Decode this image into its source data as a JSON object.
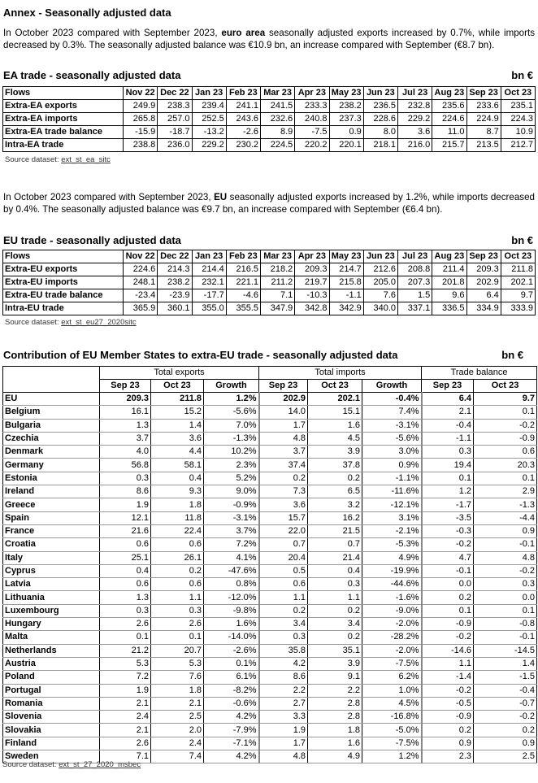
{
  "title": "Annex - Seasonally adjusted data",
  "para1": {
    "a": "In October 2023 compared with September 2023, ",
    "b": "euro area",
    "c": " seasonally adjusted exports increased by 0.7%, while imports decreased by 0.3%. The seasonally adjusted balance was €10.9 bn, an increase compared with September (€8.7 bn)."
  },
  "ea": {
    "title": "EA trade - seasonally adjusted data",
    "unit": "bn €",
    "headers": [
      "Flows",
      "Nov 22",
      "Dec 22",
      "Jan 23",
      "Feb 23",
      "Mar 23",
      "Apr 23",
      "May 23",
      "Jun 23",
      "Jul 23",
      "Aug 23",
      "Sep 23",
      "Oct 23"
    ],
    "rows": [
      [
        "Extra-EA exports",
        "249.9",
        "238.3",
        "239.4",
        "241.1",
        "241.5",
        "233.3",
        "238.2",
        "236.5",
        "232.8",
        "235.6",
        "233.6",
        "235.1"
      ],
      [
        "Extra-EA imports",
        "265.8",
        "257.0",
        "252.5",
        "243.6",
        "232.6",
        "240.8",
        "237.3",
        "228.6",
        "229.2",
        "224.6",
        "224.9",
        "224.3"
      ],
      [
        "Extra-EA trade balance",
        "-15.9",
        "-18.7",
        "-13.2",
        "-2.6",
        "8.9",
        "-7.5",
        "0.9",
        "8.0",
        "3.6",
        "11.0",
        "8.7",
        "10.9"
      ],
      [
        "Intra-EA trade",
        "238.8",
        "236.0",
        "229.2",
        "230.2",
        "224.5",
        "220.2",
        "220.1",
        "218.1",
        "216.0",
        "215.7",
        "213.5",
        "212.7"
      ]
    ],
    "source_label": "Source dataset: ",
    "source_link": "ext_st_ea_sitc"
  },
  "para2": {
    "a": "In October 2023 compared with September 2023, ",
    "b": "EU",
    "c": " seasonally adjusted exports increased by 1.2%, while imports decreased by 0.4%. The seasonally adjusted balance was €9.7 bn, an increase compared with September (€6.4 bn)."
  },
  "eu": {
    "title": "EU trade - seasonally adjusted data",
    "unit": "bn €",
    "headers": [
      "Flows",
      "Nov 22",
      "Dec 22",
      "Jan 23",
      "Feb 23",
      "Mar 23",
      "Apr 23",
      "May 23",
      "Jun 23",
      "Jul 23",
      "Aug 23",
      "Sep 23",
      "Oct 23"
    ],
    "rows": [
      [
        "Extra-EU exports",
        "224.6",
        "214.3",
        "214.4",
        "216.5",
        "218.2",
        "209.3",
        "214.7",
        "212.6",
        "208.8",
        "211.4",
        "209.3",
        "211.8"
      ],
      [
        "Extra-EU imports",
        "248.1",
        "238.2",
        "232.1",
        "221.1",
        "211.2",
        "219.7",
        "215.8",
        "205.0",
        "207.3",
        "201.8",
        "202.9",
        "202.1"
      ],
      [
        "Extra-EU trade balance",
        "-23.4",
        "-23.9",
        "-17.7",
        "-4.6",
        "7.1",
        "-10.3",
        "-1.1",
        "7.6",
        "1.5",
        "9.6",
        "6.4",
        "9.7"
      ],
      [
        "Intra-EU trade",
        "365.9",
        "360.1",
        "355.0",
        "355.5",
        "347.9",
        "342.8",
        "342.9",
        "340.0",
        "337.1",
        "336.5",
        "334.9",
        "333.9"
      ]
    ],
    "source_label": "Source dataset: ",
    "source_link": "ext_st_eu27_2020sitc"
  },
  "contrib": {
    "title": "Contribution of EU Member States to extra-EU trade - seasonally adjusted data",
    "unit": "bn €",
    "groups": [
      "Total exports",
      "Total imports",
      "Trade balance"
    ],
    "subheaders": [
      "Sep 23",
      "Oct 23",
      "Growth",
      "Sep 23",
      "Oct 23",
      "Growth",
      "Sep 23",
      "Oct 23"
    ],
    "rows": [
      [
        "EU",
        "209.3",
        "211.8",
        "1.2%",
        "202.9",
        "202.1",
        "-0.4%",
        "6.4",
        "9.7"
      ],
      [
        "Belgium",
        "16.1",
        "15.2",
        "-5.6%",
        "14.0",
        "15.1",
        "7.4%",
        "2.1",
        "0.1"
      ],
      [
        "Bulgaria",
        "1.3",
        "1.4",
        "7.0%",
        "1.7",
        "1.6",
        "-3.1%",
        "-0.4",
        "-0.2"
      ],
      [
        "Czechia",
        "3.7",
        "3.6",
        "-1.3%",
        "4.8",
        "4.5",
        "-5.6%",
        "-1.1",
        "-0.9"
      ],
      [
        "Denmark",
        "4.0",
        "4.4",
        "10.2%",
        "3.7",
        "3.9",
        "3.0%",
        "0.3",
        "0.6"
      ],
      [
        "Germany",
        "56.8",
        "58.1",
        "2.3%",
        "37.4",
        "37.8",
        "0.9%",
        "19.4",
        "20.3"
      ],
      [
        "Estonia",
        "0.3",
        "0.4",
        "5.2%",
        "0.2",
        "0.2",
        "-1.1%",
        "0.1",
        "0.1"
      ],
      [
        "Ireland",
        "8.6",
        "9.3",
        "9.0%",
        "7.3",
        "6.5",
        "-11.6%",
        "1.2",
        "2.9"
      ],
      [
        "Greece",
        "1.9",
        "1.8",
        "-0.9%",
        "3.6",
        "3.2",
        "-12.1%",
        "-1.7",
        "-1.3"
      ],
      [
        "Spain",
        "12.1",
        "11.8",
        "-3.1%",
        "15.7",
        "16.2",
        "3.1%",
        "-3.5",
        "-4.4"
      ],
      [
        "France",
        "21.6",
        "22.4",
        "3.7%",
        "22.0",
        "21.5",
        "-2.1%",
        "-0.3",
        "0.9"
      ],
      [
        "Croatia",
        "0.6",
        "0.6",
        "7.2%",
        "0.7",
        "0.7",
        "-5.3%",
        "-0.2",
        "-0.1"
      ],
      [
        "Italy",
        "25.1",
        "26.1",
        "4.1%",
        "20.4",
        "21.4",
        "4.9%",
        "4.7",
        "4.8"
      ],
      [
        "Cyprus",
        "0.4",
        "0.2",
        "-47.6%",
        "0.5",
        "0.4",
        "-19.9%",
        "-0.1",
        "-0.2"
      ],
      [
        "Latvia",
        "0.6",
        "0.6",
        "0.8%",
        "0.6",
        "0.3",
        "-44.6%",
        "0.0",
        "0.3"
      ],
      [
        "Lithuania",
        "1.3",
        "1.1",
        "-12.0%",
        "1.1",
        "1.1",
        "-1.6%",
        "0.2",
        "0.0"
      ],
      [
        "Luxembourg",
        "0.3",
        "0.3",
        "-9.8%",
        "0.2",
        "0.2",
        "-9.0%",
        "0.1",
        "0.1"
      ],
      [
        "Hungary",
        "2.6",
        "2.6",
        "1.6%",
        "3.4",
        "3.4",
        "-2.0%",
        "-0.9",
        "-0.8"
      ],
      [
        "Malta",
        "0.1",
        "0.1",
        "-14.0%",
        "0.3",
        "0.2",
        "-28.2%",
        "-0.2",
        "-0.1"
      ],
      [
        "Netherlands",
        "21.2",
        "20.7",
        "-2.6%",
        "35.8",
        "35.1",
        "-2.0%",
        "-14.6",
        "-14.5"
      ],
      [
        "Austria",
        "5.3",
        "5.3",
        "0.1%",
        "4.2",
        "3.9",
        "-7.5%",
        "1.1",
        "1.4"
      ],
      [
        "Poland",
        "7.2",
        "7.6",
        "6.1%",
        "8.6",
        "9.1",
        "6.2%",
        "-1.4",
        "-1.5"
      ],
      [
        "Portugal",
        "1.9",
        "1.8",
        "-8.2%",
        "2.2",
        "2.2",
        "1.0%",
        "-0.2",
        "-0.4"
      ],
      [
        "Romania",
        "2.1",
        "2.1",
        "-0.6%",
        "2.7",
        "2.8",
        "4.5%",
        "-0.5",
        "-0.7"
      ],
      [
        "Slovenia",
        "2.4",
        "2.5",
        "4.2%",
        "3.3",
        "2.8",
        "-16.8%",
        "-0.9",
        "-0.2"
      ],
      [
        "Slovakia",
        "2.1",
        "2.0",
        "-7.9%",
        "1.9",
        "1.8",
        "-5.0%",
        "0.2",
        "0.2"
      ],
      [
        "Finland",
        "2.6",
        "2.4",
        "-7.1%",
        "1.7",
        "1.6",
        "-7.5%",
        "0.9",
        "0.9"
      ],
      [
        "Sweden",
        "7.1",
        "7.4",
        "4.2%",
        "4.8",
        "4.9",
        "1.2%",
        "2.3",
        "2.5"
      ]
    ],
    "source_label": "Source dataset: ",
    "source_link": "ext_st_27_2020_msbec"
  }
}
